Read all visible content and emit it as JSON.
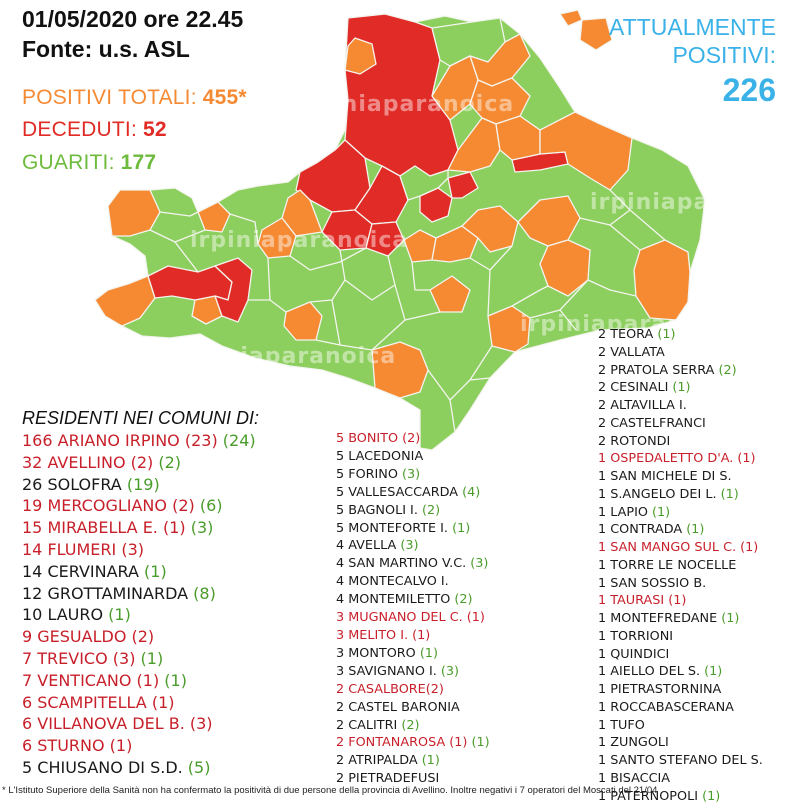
{
  "header": {
    "date": "01/05/2020 ore 22.45",
    "source": "Fonte: u.s. ASL"
  },
  "stats": {
    "positivi_label": "POSITIVI TOTALI: ",
    "positivi_value": "455*",
    "deceduti_label": "DECEDUTI: ",
    "deceduti_value": "52",
    "guariti_label": "GUARITI: ",
    "guariti_value": "177"
  },
  "attualmente": {
    "line1": "ATTUALMENTE",
    "line2": "POSITIVI:",
    "value": "226"
  },
  "watermarks": [
    "irpiniaparanoica",
    "irpiniaparanoica",
    "irpiniaparanoica",
    "irpiniaparanoica",
    "irpiniaparanoica"
  ],
  "list_title": "RESIDENTI NEI COMUNI DI:",
  "colors": {
    "red": "#e12b26",
    "orange": "#f58a33",
    "green": "#8ccf5e",
    "border": "#f4f4ef",
    "header_blue": "#3ab2e8",
    "text_red": "#c8202a",
    "text_green": "#4a9c2a"
  },
  "columns": [
    [
      {
        "name": "166 ARIANO IRPINO",
        "color": "red",
        "deaths": " (23)",
        "recovered": " (24)"
      },
      {
        "name": "32 AVELLINO",
        "color": "red",
        "deaths": " (2)",
        "recovered": " (2)"
      },
      {
        "name": "26 SOLOFRA",
        "color": "black",
        "deaths": "",
        "recovered": " (19)"
      },
      {
        "name": "19 MERCOGLIANO",
        "color": "red",
        "deaths": " (2)",
        "recovered": " (6)"
      },
      {
        "name": "15 MIRABELLA E.",
        "color": "red",
        "deaths": " (1)",
        "recovered": " (3)"
      },
      {
        "name": "14 FLUMERI",
        "color": "red",
        "deaths": " (3)",
        "recovered": ""
      },
      {
        "name": "14 CERVINARA",
        "color": "black",
        "deaths": "",
        "recovered": " (1)"
      },
      {
        "name": "12 GROTTAMINARDA",
        "color": "black",
        "deaths": "",
        "recovered": " (8)"
      },
      {
        "name": "10 LAURO",
        "color": "black",
        "deaths": "",
        "recovered": " (1)"
      },
      {
        "name": "9 GESUALDO",
        "color": "red",
        "deaths": " (2)",
        "recovered": ""
      },
      {
        "name": "7 TREVICO",
        "color": "red",
        "deaths": " (3)",
        "recovered": " (1)"
      },
      {
        "name": "7 VENTICANO",
        "color": "red",
        "deaths": " (1)",
        "recovered": " (1)"
      },
      {
        "name": "6 SCAMPITELLA",
        "color": "red",
        "deaths": " (1)",
        "recovered": ""
      },
      {
        "name": "6 VILLANOVA DEL B.",
        "color": "red",
        "deaths": " (3)",
        "recovered": ""
      },
      {
        "name": "6 STURNO",
        "color": "red",
        "deaths": " (1)",
        "recovered": ""
      },
      {
        "name": "5 CHIUSANO DI S.D.",
        "color": "black",
        "deaths": "",
        "recovered": " (5)"
      }
    ],
    [
      {
        "name": "5 BONITO",
        "color": "red",
        "deaths": " (2)",
        "recovered": ""
      },
      {
        "name": "5 LACEDONIA",
        "color": "black",
        "deaths": "",
        "recovered": ""
      },
      {
        "name": "5 FORINO",
        "color": "black",
        "deaths": "",
        "recovered": " (3)"
      },
      {
        "name": "5 VALLESACCARDA",
        "color": "black",
        "deaths": "",
        "recovered": " (4)"
      },
      {
        "name": "5 BAGNOLI I.",
        "color": "black",
        "deaths": "",
        "recovered": " (2)"
      },
      {
        "name": "5 MONTEFORTE I.",
        "color": "black",
        "deaths": "",
        "recovered": " (1)"
      },
      {
        "name": "4 AVELLA",
        "color": "black",
        "deaths": "",
        "recovered": " (3)"
      },
      {
        "name": "4 SAN MARTINO V.C.",
        "color": "black",
        "deaths": "",
        "recovered": " (3)"
      },
      {
        "name": "4 MONTECALVO I.",
        "color": "black",
        "deaths": "",
        "recovered": ""
      },
      {
        "name": "4 MONTEMILETTO",
        "color": "black",
        "deaths": "",
        "recovered": " (2)"
      },
      {
        "name": "3 MUGNANO DEL C.",
        "color": "red",
        "deaths": " (1)",
        "recovered": ""
      },
      {
        "name": "3 MELITO I.",
        "color": "red",
        "deaths": " (1)",
        "recovered": ""
      },
      {
        "name": "3 MONTORO",
        "color": "black",
        "deaths": "",
        "recovered": " (1)"
      },
      {
        "name": "3 SAVIGNANO I.",
        "color": "black",
        "deaths": "",
        "recovered": " (3)"
      },
      {
        "name": "2 CASALBORE",
        "color": "red",
        "deaths": "(2)",
        "recovered": ""
      },
      {
        "name": "2 CASTEL BARONIA",
        "color": "black",
        "deaths": "",
        "recovered": ""
      },
      {
        "name": "2 CALITRI",
        "color": "black",
        "deaths": "",
        "recovered": " (2)"
      },
      {
        "name": "2 FONTANAROSA",
        "color": "red",
        "deaths": " (1)",
        "recovered": " (1)"
      },
      {
        "name": "2 ATRIPALDA",
        "color": "black",
        "deaths": "",
        "recovered": " (1)"
      },
      {
        "name": "2 PIETRADEFUSI",
        "color": "black",
        "deaths": "",
        "recovered": ""
      }
    ],
    [
      {
        "name": "2 TEORA",
        "color": "black",
        "deaths": "",
        "recovered": " (1)"
      },
      {
        "name": "2 VALLATA",
        "color": "black",
        "deaths": "",
        "recovered": ""
      },
      {
        "name": "2 PRATOLA SERRA",
        "color": "black",
        "deaths": "",
        "recovered": " (2)"
      },
      {
        "name": "2 CESINALI",
        "color": "black",
        "deaths": "",
        "recovered": " (1)"
      },
      {
        "name": "2 ALTAVILLA I.",
        "color": "black",
        "deaths": "",
        "recovered": ""
      },
      {
        "name": "2 CASTELFRANCI",
        "color": "black",
        "deaths": "",
        "recovered": ""
      },
      {
        "name": "2 ROTONDI",
        "color": "black",
        "deaths": "",
        "recovered": ""
      },
      {
        "name": "1 OSPEDALETTO D'A.",
        "color": "red",
        "deaths": " (1)",
        "recovered": ""
      },
      {
        "name": "1 SAN MICHELE DI S.",
        "color": "black",
        "deaths": "",
        "recovered": ""
      },
      {
        "name": "1 S.ANGELO DEI L.",
        "color": "black",
        "deaths": "",
        "recovered": " (1)"
      },
      {
        "name": "1 LAPIO",
        "color": "black",
        "deaths": "",
        "recovered": " (1)"
      },
      {
        "name": "1 CONTRADA",
        "color": "black",
        "deaths": "",
        "recovered": " (1)"
      },
      {
        "name": "1 SAN MANGO SUL C.",
        "color": "red",
        "deaths": " (1)",
        "recovered": ""
      },
      {
        "name": "1 TORRE LE NOCELLE",
        "color": "black",
        "deaths": "",
        "recovered": ""
      },
      {
        "name": "1 SAN SOSSIO B.",
        "color": "black",
        "deaths": "",
        "recovered": ""
      },
      {
        "name": "1 TAURASI",
        "color": "red",
        "deaths": " (1)",
        "recovered": ""
      },
      {
        "name": "1 MONTEFREDANE",
        "color": "black",
        "deaths": "",
        "recovered": " (1)"
      },
      {
        "name": "1 TORRIONI",
        "color": "black",
        "deaths": "",
        "recovered": ""
      },
      {
        "name": "1 QUINDICI",
        "color": "black",
        "deaths": "",
        "recovered": ""
      },
      {
        "name": "1 AIELLO DEL S.",
        "color": "black",
        "deaths": "",
        "recovered": " (1)"
      },
      {
        "name": "1 PIETRASTORNINA",
        "color": "black",
        "deaths": "",
        "recovered": ""
      },
      {
        "name": "1 ROCCABASCERANA",
        "color": "black",
        "deaths": "",
        "recovered": ""
      },
      {
        "name": "1 TUFO",
        "color": "black",
        "deaths": "",
        "recovered": ""
      },
      {
        "name": "1 ZUNGOLI",
        "color": "black",
        "deaths": "",
        "recovered": ""
      },
      {
        "name": "1 SANTO STEFANO DEL S.",
        "color": "black",
        "deaths": "",
        "recovered": ""
      },
      {
        "name": "1 BISACCIA",
        "color": "black",
        "deaths": "",
        "recovered": ""
      },
      {
        "name": "1 PATERNOPOLI",
        "color": "black",
        "deaths": "",
        "recovered": " (1)"
      }
    ]
  ],
  "footnote": "* L'Istituto Superiore della Sanità non ha confermato la positività di due persone della provincia di Avellino. Inoltre negativi i 7 operatori del Moscati del 21/04"
}
